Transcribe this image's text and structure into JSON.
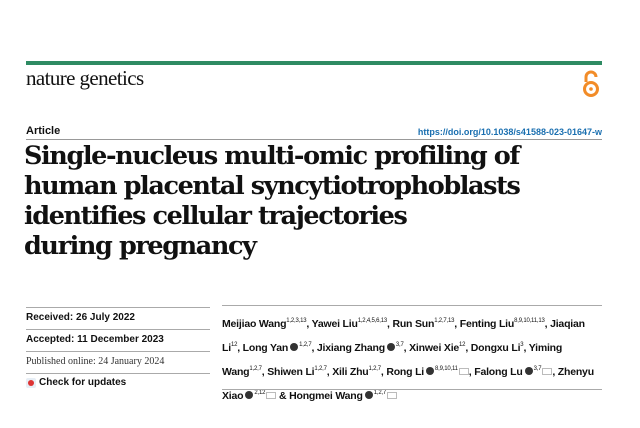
{
  "journal": "nature genetics",
  "article_type": "Article",
  "doi": "https://doi.org/10.1038/s41588-023-01647-w",
  "title_lines": [
    "Single-nucleus multi-omic profiling of",
    "human placental syncytiotrophoblasts",
    "identifies cellular trajectories",
    "during pregnancy"
  ],
  "received": "Received: 26 July 2022",
  "accepted": "Accepted: 11 December 2023",
  "published": "Published online: 24 January 2024",
  "check_updates": "Check for updates",
  "colors": {
    "accent": "#2e8b63",
    "open_access": "#f28c28",
    "link": "#1a6fb0"
  },
  "authors": [
    {
      "name": "Meijiao Wang",
      "sup": "1,2,3,13",
      "orcid": false,
      "email": false
    },
    {
      "name": "Yawei Liu",
      "sup": "1,2,4,5,6,13",
      "orcid": false,
      "email": false
    },
    {
      "name": "Run Sun",
      "sup": "1,2,7,13",
      "orcid": false,
      "email": false
    },
    {
      "name": "Fenting Liu",
      "sup": "8,9,10,11,13",
      "orcid": false,
      "email": false
    },
    {
      "name": "Jiaqian Li",
      "sup": "12",
      "orcid": false,
      "email": false
    },
    {
      "name": "Long Yan",
      "sup": "1,2,7",
      "orcid": true,
      "email": false
    },
    {
      "name": "Jixiang Zhang",
      "sup": "3,7",
      "orcid": true,
      "email": false
    },
    {
      "name": "Xinwei Xie",
      "sup": "12",
      "orcid": false,
      "email": false
    },
    {
      "name": "Dongxu Li",
      "sup": "3",
      "orcid": false,
      "email": false
    },
    {
      "name": "Yiming Wang",
      "sup": "1,2,7",
      "orcid": false,
      "email": false
    },
    {
      "name": "Shiwen Li",
      "sup": "1,2,7",
      "orcid": false,
      "email": false
    },
    {
      "name": "Xili Zhu",
      "sup": "1,2,7",
      "orcid": false,
      "email": false
    },
    {
      "name": "Rong Li",
      "sup": "8,9,10,11",
      "orcid": true,
      "email": true
    },
    {
      "name": "Falong Lu",
      "sup": "3,7",
      "orcid": true,
      "email": true
    },
    {
      "name": "Zhenyu Xiao",
      "sup": "2,12",
      "orcid": true,
      "email": true
    },
    {
      "name": "Hongmei Wang",
      "sup": "1,2,7",
      "orcid": true,
      "email": true
    }
  ]
}
